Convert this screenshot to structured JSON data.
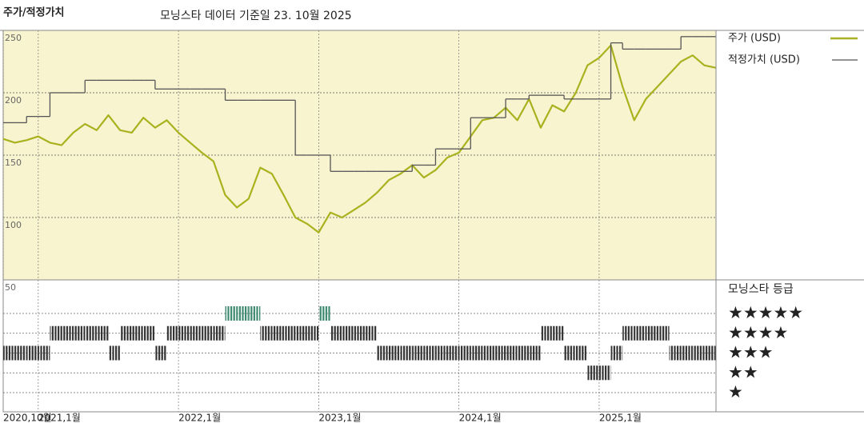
{
  "chart_data": [
    {
      "type": "line",
      "title": "주가/적정가치",
      "subtitle": "모닝스타 데이터 기준일 23. 10월 2025",
      "x": [
        "2020-10",
        "2020-11",
        "2020-12",
        "2021-01",
        "2021-02",
        "2021-03",
        "2021-04",
        "2021-05",
        "2021-06",
        "2021-07",
        "2021-08",
        "2021-09",
        "2021-10",
        "2021-11",
        "2021-12",
        "2022-01",
        "2022-02",
        "2022-03",
        "2022-04",
        "2022-05",
        "2022-06",
        "2022-07",
        "2022-08",
        "2022-09",
        "2022-10",
        "2022-11",
        "2022-12",
        "2023-01",
        "2023-02",
        "2023-03",
        "2023-04",
        "2023-05",
        "2023-06",
        "2023-07",
        "2023-08",
        "2023-09",
        "2023-10",
        "2023-11",
        "2023-12",
        "2024-01",
        "2024-02",
        "2024-03",
        "2024-04",
        "2024-05",
        "2024-06",
        "2024-07",
        "2024-08",
        "2024-09",
        "2024-10",
        "2024-11",
        "2024-12",
        "2025-01",
        "2025-02",
        "2025-03",
        "2025-04",
        "2025-05",
        "2025-06",
        "2025-07",
        "2025-08",
        "2025-09",
        "2025-10",
        "2025-11"
      ],
      "series": [
        {
          "name": "주가 (USD)",
          "color": "#a9b21e",
          "style": "line",
          "values": [
            163,
            160,
            162,
            165,
            160,
            158,
            168,
            175,
            170,
            182,
            170,
            168,
            180,
            172,
            178,
            168,
            160,
            152,
            145,
            118,
            108,
            115,
            140,
            135,
            118,
            100,
            95,
            88,
            104,
            100,
            106,
            112,
            120,
            130,
            135,
            142,
            132,
            138,
            148,
            152,
            165,
            178,
            180,
            188,
            178,
            195,
            172,
            190,
            185,
            200,
            222,
            228,
            238,
            205,
            178,
            195,
            205,
            215,
            225,
            230,
            222,
            220
          ]
        },
        {
          "name": "적정가치 (USD)",
          "color": "#555555",
          "style": "step",
          "values": [
            176,
            176,
            181,
            181,
            200,
            200,
            200,
            210,
            210,
            210,
            210,
            210,
            210,
            203,
            203,
            203,
            203,
            203,
            203,
            194,
            194,
            194,
            194,
            194,
            194,
            150,
            150,
            150,
            137,
            137,
            137,
            137,
            137,
            137,
            137,
            142,
            142,
            155,
            155,
            155,
            180,
            180,
            180,
            195,
            195,
            198,
            198,
            198,
            195,
            195,
            195,
            195,
            240,
            235,
            235,
            235,
            235,
            235,
            245,
            245,
            245,
            245
          ]
        }
      ],
      "xlim": [
        "2020-10",
        "2025-11"
      ],
      "xticks": [
        {
          "value": "2020-10",
          "label": "2020,10월"
        },
        {
          "value": "2021-01",
          "label": "2021,1월"
        },
        {
          "value": "2022-01",
          "label": "2022,1월"
        },
        {
          "value": "2023-01",
          "label": "2023,1월"
        },
        {
          "value": "2024-01",
          "label": "2024,1월"
        },
        {
          "value": "2025-01",
          "label": "2025,1월"
        }
      ],
      "ylim": [
        50,
        250
      ],
      "yticks": [
        50,
        100,
        150,
        200,
        250
      ],
      "grid": true,
      "background": "#f8f4cf"
    },
    {
      "type": "rating-strip",
      "title": "모닝스타 등급",
      "x": [
        "2020-10",
        "2020-11",
        "2020-12",
        "2021-01",
        "2021-02",
        "2021-03",
        "2021-04",
        "2021-05",
        "2021-06",
        "2021-07",
        "2021-08",
        "2021-09",
        "2021-10",
        "2021-11",
        "2021-12",
        "2022-01",
        "2022-02",
        "2022-03",
        "2022-04",
        "2022-05",
        "2022-06",
        "2022-07",
        "2022-08",
        "2022-09",
        "2022-10",
        "2022-11",
        "2022-12",
        "2023-01",
        "2023-02",
        "2023-03",
        "2023-04",
        "2023-05",
        "2023-06",
        "2023-07",
        "2023-08",
        "2023-09",
        "2023-10",
        "2023-11",
        "2023-12",
        "2024-01",
        "2024-02",
        "2024-03",
        "2024-04",
        "2024-05",
        "2024-06",
        "2024-07",
        "2024-08",
        "2024-09",
        "2024-10",
        "2024-11",
        "2024-12",
        "2025-01",
        "2025-02",
        "2025-03",
        "2025-04",
        "2025-05",
        "2025-06",
        "2025-07",
        "2025-08",
        "2025-09",
        "2025-10",
        "2025-11"
      ],
      "values": [
        3,
        3,
        3,
        3,
        4,
        4,
        4,
        4,
        4,
        3,
        4,
        4,
        4,
        3,
        4,
        4,
        4,
        4,
        4,
        5,
        5,
        5,
        4,
        4,
        4,
        4,
        4,
        5,
        4,
        4,
        4,
        4,
        3,
        3,
        3,
        3,
        3,
        3,
        3,
        3,
        3,
        3,
        3,
        3,
        3,
        3,
        4,
        4,
        3,
        3,
        2,
        2,
        3,
        4,
        4,
        4,
        4,
        3,
        3,
        3,
        3,
        3
      ],
      "ylim": [
        1,
        5
      ],
      "yticks": [
        {
          "value": 5,
          "label": "★★★★★"
        },
        {
          "value": 4,
          "label": "★★★★"
        },
        {
          "value": 3,
          "label": "★★★"
        },
        {
          "value": 2,
          "label": "★★"
        },
        {
          "value": 1,
          "label": "★"
        }
      ],
      "colors": [
        "#3e8a70",
        "#333333",
        "#333333",
        "#333333",
        "#333333"
      ]
    }
  ]
}
